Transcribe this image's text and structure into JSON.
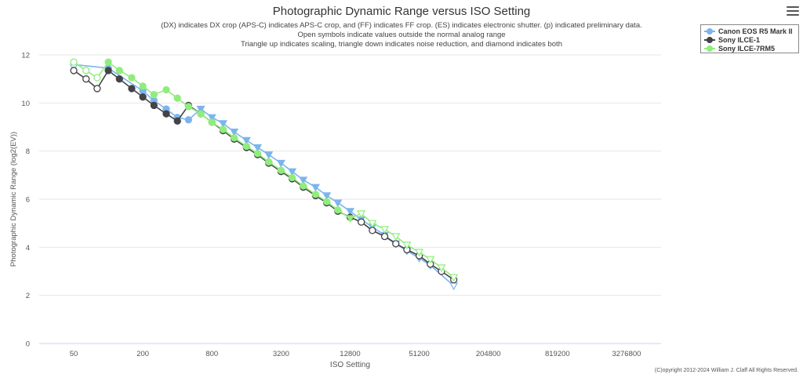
{
  "header": {
    "title": "Photographic Dynamic Range versus ISO Setting",
    "subtitles": [
      "(DX) indicates DX crop (APS-C) indicates APS-C crop, and (FF) indicates FF crop. (ES) indicates electronic shutter. (p) indicated preliminary data.",
      "Open symbols indicate values outside the normal analog range",
      "Triangle up indicates scaling, triangle down indicates noise reduction, and diamond indicates both"
    ]
  },
  "menu": {
    "icon": "hamburger-menu-icon"
  },
  "legend": {
    "items": [
      {
        "label": "Canon EOS R5 Mark II",
        "color": "#7cb5ec"
      },
      {
        "label": "Sony ILCE-1",
        "color": "#434348"
      },
      {
        "label": "Sony ILCE-7RM5",
        "color": "#90ed7d"
      }
    ]
  },
  "footer": {
    "copyright": "(C)opyright 2012-2024 William J. Claff All Rights Reserved."
  },
  "chart_data": {
    "type": "line",
    "title": "Photographic Dynamic Range versus ISO Setting",
    "xlabel": "ISO Setting",
    "ylabel": "Photographic Dynamic Range (log2(EV))",
    "x_scale": "log2",
    "x_ticks": [
      "50",
      "200",
      "800",
      "3200",
      "12800",
      "51200",
      "204800",
      "819200",
      "3276800"
    ],
    "xlim": [
      25,
      6553600
    ],
    "ylim": [
      0,
      12
    ],
    "y_ticks": [
      0,
      2,
      4,
      6,
      8,
      10,
      12
    ],
    "grid": "horizontal",
    "legend_position": "top-right",
    "series": [
      {
        "name": "Canon EOS R5 Mark II",
        "color": "#7cb5ec",
        "points": [
          {
            "x": 50,
            "y": 11.6,
            "m": "open-circle"
          },
          {
            "x": 100,
            "y": 11.45,
            "m": "circle"
          },
          {
            "x": 200,
            "y": 10.5,
            "m": "circle"
          },
          {
            "x": 250,
            "y": 10.1,
            "m": "circle"
          },
          {
            "x": 320,
            "y": 9.75,
            "m": "circle"
          },
          {
            "x": 400,
            "y": 9.4,
            "m": "circle"
          },
          {
            "x": 500,
            "y": 9.3,
            "m": "circle"
          },
          {
            "x": 640,
            "y": 9.75,
            "m": "tri-down"
          },
          {
            "x": 800,
            "y": 9.4,
            "m": "tri-down"
          },
          {
            "x": 1000,
            "y": 9.15,
            "m": "tri-down"
          },
          {
            "x": 1250,
            "y": 8.8,
            "m": "tri-down"
          },
          {
            "x": 1600,
            "y": 8.45,
            "m": "tri-down"
          },
          {
            "x": 2000,
            "y": 8.15,
            "m": "tri-down"
          },
          {
            "x": 2500,
            "y": 7.85,
            "m": "tri-down"
          },
          {
            "x": 3200,
            "y": 7.5,
            "m": "tri-down"
          },
          {
            "x": 4000,
            "y": 7.15,
            "m": "tri-down"
          },
          {
            "x": 5000,
            "y": 6.8,
            "m": "tri-down"
          },
          {
            "x": 6400,
            "y": 6.5,
            "m": "tri-down"
          },
          {
            "x": 8000,
            "y": 6.15,
            "m": "tri-down"
          },
          {
            "x": 10000,
            "y": 5.85,
            "m": "tri-down"
          },
          {
            "x": 12800,
            "y": 5.5,
            "m": "tri-down"
          },
          {
            "x": 16000,
            "y": 5.15,
            "m": "tri-down"
          },
          {
            "x": 20000,
            "y": 4.85,
            "m": "tri-down"
          },
          {
            "x": 25600,
            "y": 4.5,
            "m": "tri-down"
          },
          {
            "x": 32000,
            "y": 4.15,
            "m": "tri-down"
          },
          {
            "x": 40000,
            "y": 3.85,
            "m": "tri-down"
          },
          {
            "x": 51200,
            "y": 3.55,
            "m": "tri-down"
          },
          {
            "x": 64000,
            "y": 3.25,
            "m": "tri-down"
          },
          {
            "x": 102400,
            "y": 2.4,
            "m": "open-tri-down"
          }
        ]
      },
      {
        "name": "Sony ILCE-1",
        "color": "#434348",
        "points": [
          {
            "x": 50,
            "y": 11.35,
            "m": "open-circle"
          },
          {
            "x": 64,
            "y": 11.0,
            "m": "open-circle"
          },
          {
            "x": 80,
            "y": 10.6,
            "m": "open-circle"
          },
          {
            "x": 100,
            "y": 11.35,
            "m": "circle"
          },
          {
            "x": 125,
            "y": 11.0,
            "m": "circle"
          },
          {
            "x": 160,
            "y": 10.6,
            "m": "circle"
          },
          {
            "x": 200,
            "y": 10.25,
            "m": "circle"
          },
          {
            "x": 250,
            "y": 9.9,
            "m": "circle"
          },
          {
            "x": 320,
            "y": 9.55,
            "m": "circle"
          },
          {
            "x": 400,
            "y": 9.25,
            "m": "circle"
          },
          {
            "x": 500,
            "y": 9.9,
            "m": "circle"
          },
          {
            "x": 640,
            "y": 9.55,
            "m": "circle"
          },
          {
            "x": 800,
            "y": 9.2,
            "m": "circle"
          },
          {
            "x": 1000,
            "y": 8.85,
            "m": "circle"
          },
          {
            "x": 1250,
            "y": 8.5,
            "m": "circle"
          },
          {
            "x": 1600,
            "y": 8.15,
            "m": "circle"
          },
          {
            "x": 2000,
            "y": 7.85,
            "m": "circle"
          },
          {
            "x": 2500,
            "y": 7.5,
            "m": "circle"
          },
          {
            "x": 3200,
            "y": 7.15,
            "m": "circle"
          },
          {
            "x": 4000,
            "y": 6.85,
            "m": "circle"
          },
          {
            "x": 5000,
            "y": 6.5,
            "m": "circle"
          },
          {
            "x": 6400,
            "y": 6.15,
            "m": "circle"
          },
          {
            "x": 8000,
            "y": 5.85,
            "m": "circle"
          },
          {
            "x": 10000,
            "y": 5.5,
            "m": "circle"
          },
          {
            "x": 12800,
            "y": 5.25,
            "m": "circle"
          },
          {
            "x": 16000,
            "y": 5.05,
            "m": "open-circle"
          },
          {
            "x": 20000,
            "y": 4.7,
            "m": "open-circle"
          },
          {
            "x": 25600,
            "y": 4.45,
            "m": "open-circle"
          },
          {
            "x": 32000,
            "y": 4.15,
            "m": "open-circle"
          },
          {
            "x": 40000,
            "y": 3.9,
            "m": "open-circle"
          },
          {
            "x": 51200,
            "y": 3.65,
            "m": "open-circle"
          },
          {
            "x": 64000,
            "y": 3.3,
            "m": "open-circle"
          },
          {
            "x": 80000,
            "y": 3.0,
            "m": "open-circle"
          },
          {
            "x": 102400,
            "y": 2.65,
            "m": "open-circle"
          }
        ]
      },
      {
        "name": "Sony ILCE-7RM5",
        "color": "#90ed7d",
        "points": [
          {
            "x": 50,
            "y": 11.7,
            "m": "open-circle"
          },
          {
            "x": 64,
            "y": 11.35,
            "m": "open-circle"
          },
          {
            "x": 80,
            "y": 11.05,
            "m": "open-circle"
          },
          {
            "x": 100,
            "y": 11.7,
            "m": "circle"
          },
          {
            "x": 125,
            "y": 11.35,
            "m": "circle"
          },
          {
            "x": 160,
            "y": 11.05,
            "m": "circle"
          },
          {
            "x": 200,
            "y": 10.7,
            "m": "circle"
          },
          {
            "x": 250,
            "y": 10.35,
            "m": "circle"
          },
          {
            "x": 320,
            "y": 10.55,
            "m": "circle"
          },
          {
            "x": 400,
            "y": 10.2,
            "m": "circle"
          },
          {
            "x": 500,
            "y": 9.85,
            "m": "circle"
          },
          {
            "x": 640,
            "y": 9.55,
            "m": "circle"
          },
          {
            "x": 800,
            "y": 9.2,
            "m": "circle"
          },
          {
            "x": 1000,
            "y": 8.9,
            "m": "circle"
          },
          {
            "x": 1250,
            "y": 8.55,
            "m": "circle"
          },
          {
            "x": 1600,
            "y": 8.2,
            "m": "circle"
          },
          {
            "x": 2000,
            "y": 7.9,
            "m": "circle"
          },
          {
            "x": 2500,
            "y": 7.55,
            "m": "circle"
          },
          {
            "x": 3200,
            "y": 7.2,
            "m": "circle"
          },
          {
            "x": 4000,
            "y": 6.9,
            "m": "circle"
          },
          {
            "x": 5000,
            "y": 6.55,
            "m": "circle"
          },
          {
            "x": 6400,
            "y": 6.2,
            "m": "circle"
          },
          {
            "x": 8000,
            "y": 5.9,
            "m": "circle"
          },
          {
            "x": 10000,
            "y": 5.55,
            "m": "circle"
          },
          {
            "x": 12800,
            "y": 5.2,
            "m": "tri-down"
          },
          {
            "x": 16000,
            "y": 5.4,
            "m": "open-tri-down"
          },
          {
            "x": 20000,
            "y": 5.0,
            "m": "open-tri-down"
          },
          {
            "x": 25600,
            "y": 4.75,
            "m": "open-tri-down"
          },
          {
            "x": 32000,
            "y": 4.45,
            "m": "open-tri-down"
          },
          {
            "x": 40000,
            "y": 4.1,
            "m": "open-tri-down"
          },
          {
            "x": 51200,
            "y": 3.8,
            "m": "open-tri-down"
          },
          {
            "x": 64000,
            "y": 3.5,
            "m": "open-tri-down"
          },
          {
            "x": 80000,
            "y": 3.15,
            "m": "open-tri-down"
          },
          {
            "x": 102400,
            "y": 2.75,
            "m": "open-tri-down"
          }
        ]
      }
    ]
  }
}
